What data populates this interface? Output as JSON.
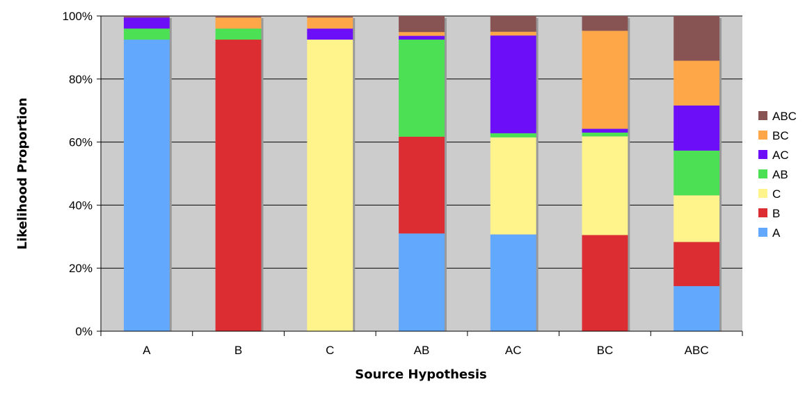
{
  "chart_data": {
    "type": "bar",
    "stacked": true,
    "percent_stacked": true,
    "xlabel": "Source Hypothesis",
    "ylabel": "Likelihood Proportion",
    "categories": [
      "A",
      "B",
      "C",
      "AB",
      "AC",
      "BC",
      "ABC"
    ],
    "ylim": [
      0,
      100
    ],
    "yticks": [
      "0%",
      "20%",
      "40%",
      "60%",
      "80%",
      "100%"
    ],
    "grid": true,
    "legend_position": "right",
    "series": [
      {
        "name": "A",
        "color": "#62A8FC",
        "values": [
          92.5,
          0,
          0,
          31.0,
          30.7,
          0,
          14.3
        ]
      },
      {
        "name": "B",
        "color": "#DC2D33",
        "values": [
          0,
          92.5,
          0,
          30.7,
          0,
          30.5,
          14.0
        ]
      },
      {
        "name": "C",
        "color": "#FFF38C",
        "values": [
          0,
          0,
          92.5,
          0,
          30.8,
          31.3,
          14.8
        ]
      },
      {
        "name": "AB",
        "color": "#4CE054",
        "values": [
          3.5,
          3.5,
          0,
          30.8,
          1.3,
          1.2,
          14.2
        ]
      },
      {
        "name": "AC",
        "color": "#6D0EF8",
        "values": [
          3.5,
          0,
          3.5,
          1.2,
          31.0,
          1.2,
          14.3
        ]
      },
      {
        "name": "BC",
        "color": "#FDA749",
        "values": [
          0,
          3.5,
          3.5,
          1.2,
          1.2,
          31.1,
          14.2
        ]
      },
      {
        "name": "ABC",
        "color": "#875353",
        "values": [
          0.5,
          0.5,
          0.5,
          5.1,
          5.0,
          4.7,
          14.2
        ]
      }
    ],
    "plot_background": "#CCCCCC",
    "gridline_color": "#000000"
  }
}
